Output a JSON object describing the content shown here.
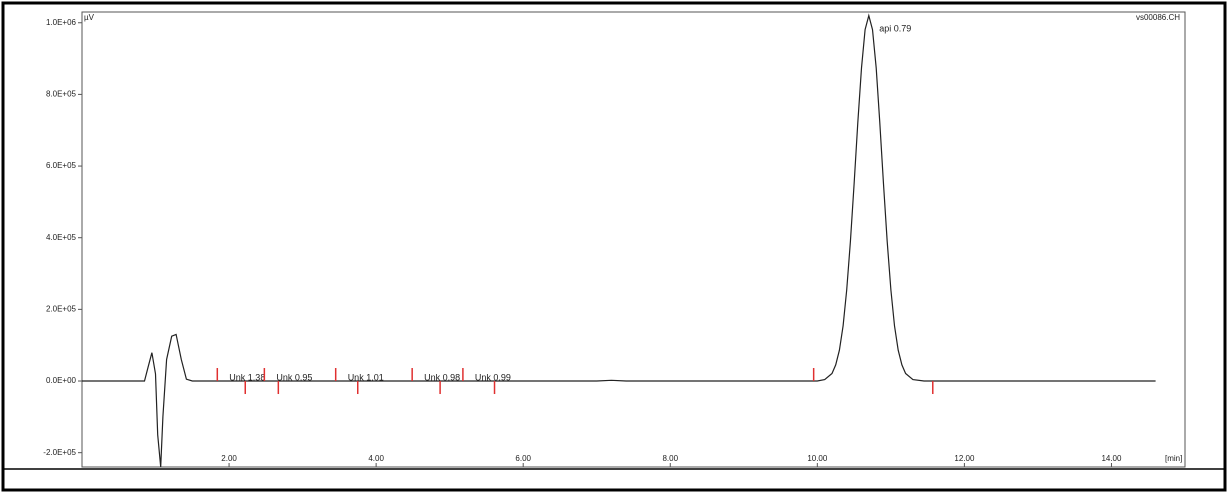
{
  "chart_data": {
    "type": "line",
    "file_name": "vs00086.CH",
    "y_unit": "µV",
    "x_unit": "[min]",
    "xlim": [
      0,
      15
    ],
    "ylim": [
      -240000,
      1030000
    ],
    "xticks": [
      {
        "value": 2,
        "label": "2.00"
      },
      {
        "value": 4,
        "label": "4.00"
      },
      {
        "value": 6,
        "label": "6.00"
      },
      {
        "value": 8,
        "label": "8.00"
      },
      {
        "value": 10,
        "label": "10.00"
      },
      {
        "value": 12,
        "label": "12.00"
      },
      {
        "value": 14,
        "label": "14.00"
      }
    ],
    "yticks": [
      {
        "value": -200000,
        "label": "-2.0E+05"
      },
      {
        "value": 0,
        "label": "0.0E+00"
      },
      {
        "value": 200000,
        "label": "2.0E+05"
      },
      {
        "value": 400000,
        "label": "4.0E+05"
      },
      {
        "value": 600000,
        "label": "6.0E+05"
      },
      {
        "value": 800000,
        "label": "8.0E+05"
      },
      {
        "value": 1000000,
        "label": "1.0E+06"
      }
    ],
    "series": [
      {
        "name": "vs00086.CH",
        "color": "#222222",
        "x": [
          0,
          0.85,
          0.9,
          0.95,
          1.0,
          1.03,
          1.07,
          1.1,
          1.15,
          1.22,
          1.28,
          1.35,
          1.42,
          1.5,
          7.0,
          7.2,
          7.4,
          10.0,
          10.1,
          10.2,
          10.25,
          10.3,
          10.35,
          10.4,
          10.45,
          10.5,
          10.55,
          10.6,
          10.65,
          10.7,
          10.75,
          10.8,
          10.85,
          10.9,
          10.95,
          11.0,
          11.05,
          11.1,
          11.15,
          11.2,
          11.3,
          11.45,
          14.6
        ],
        "values": [
          0,
          0,
          40000,
          79000,
          20000,
          -150000,
          -240000,
          -100000,
          60000,
          125000,
          130000,
          60000,
          5000,
          0,
          0,
          2000,
          0,
          0,
          3900,
          21000,
          45000,
          86000,
          154000,
          254000,
          389000,
          550000,
          721000,
          874000,
          981000,
          1020000,
          981000,
          874000,
          721000,
          550000,
          389000,
          254000,
          154000,
          86000,
          45000,
          21000,
          3900,
          0,
          0
        ]
      }
    ],
    "peaks": [
      {
        "label": "Unk 1.38",
        "start": 1.84,
        "end": 2.22
      },
      {
        "label": "Unk 0.95",
        "start": 2.48,
        "end": 2.67
      },
      {
        "label": "Unk 1.01",
        "start": 3.45,
        "end": 3.75
      },
      {
        "label": "Unk 0.98",
        "start": 4.49,
        "end": 4.87
      },
      {
        "label": "Unk 0.99",
        "start": 5.18,
        "end": 5.61
      },
      {
        "label": "api 0.79",
        "start": 9.95,
        "end": 11.57
      }
    ],
    "marker_color": "#e03030"
  }
}
